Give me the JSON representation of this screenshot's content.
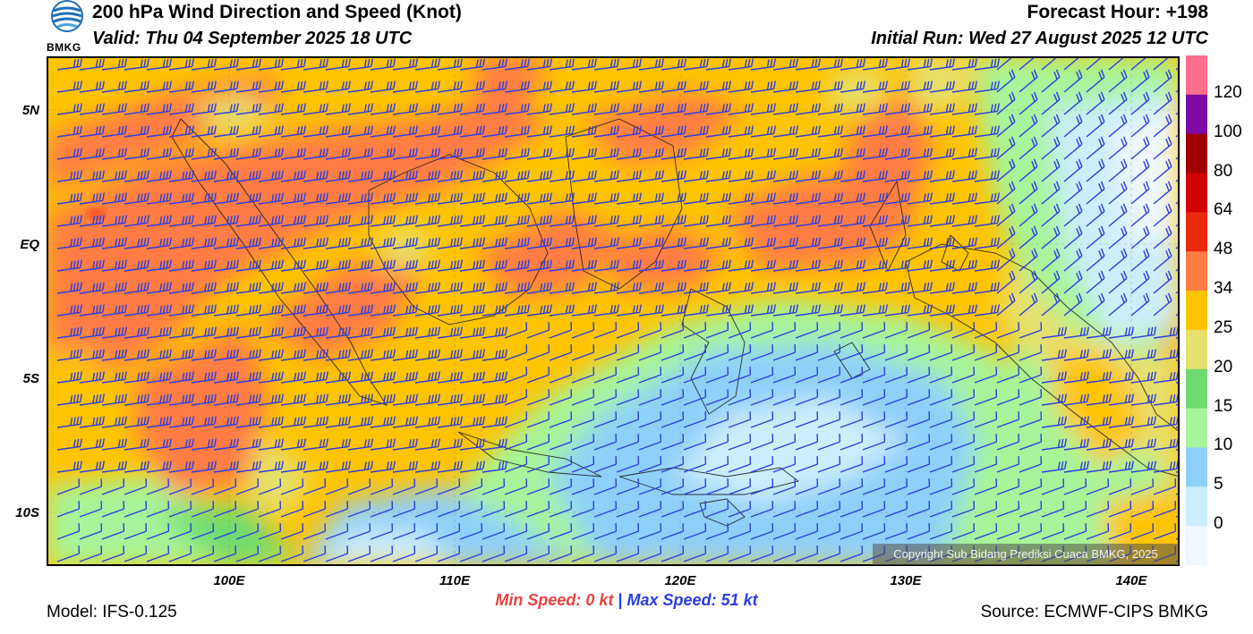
{
  "header": {
    "title": "200 hPa Wind Direction and Speed (Knot)",
    "valid": "Valid: Thu 04 September 2025 18 UTC",
    "forecast_hour": "Forecast Hour: +198",
    "initial_run": "Initial Run: Wed 27 August 2025 12 UTC",
    "logo_text": "BMKG"
  },
  "map": {
    "lat_labels": [
      "5N",
      "EQ",
      "5S",
      "10S"
    ],
    "lon_labels": [
      "100E",
      "110E",
      "120E",
      "130E",
      "140E"
    ],
    "copyright": "Copyright Sub Bidang Prediksi Cuaca BMKG, 2025"
  },
  "colorbar": {
    "labels": [
      "120",
      "100",
      "80",
      "64",
      "48",
      "34",
      "25",
      "20",
      "15",
      "10",
      "5",
      "0"
    ],
    "colors": [
      "#ff6e8c",
      "#7d0aa3",
      "#a00000",
      "#d20000",
      "#ea2a0c",
      "#ff7d45",
      "#ffc400",
      "#e6e06e",
      "#6fdb6f",
      "#a6f59a",
      "#8ed0fa",
      "#cdeefc",
      "#eef8fe"
    ]
  },
  "footer": {
    "min_label": "Min Speed:",
    "min_value": "0 kt",
    "separator": "|",
    "max_label": "Max Speed:",
    "max_value": "51 kt",
    "model": "Model: IFS-0.125",
    "source": "Source: ECMWF-CIPS BMKG"
  }
}
